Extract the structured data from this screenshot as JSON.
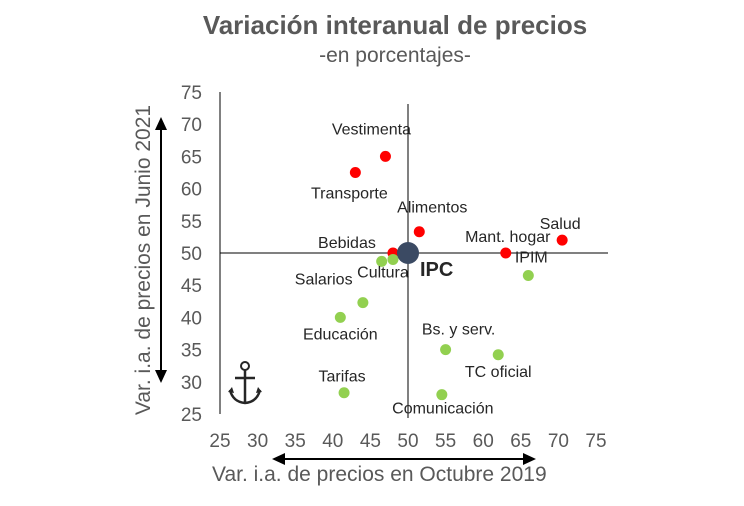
{
  "chart_data": {
    "type": "scatter",
    "title": "Variación interanual de precios",
    "subtitle": "-en porcentajes-",
    "xlabel": "Var. i.a. de precios en Octubre 2019",
    "ylabel": "Var. i.a. de precios en Junio 2021",
    "xlim": [
      25,
      75
    ],
    "ylim": [
      25,
      75
    ],
    "x_ticks": [
      25,
      30,
      35,
      40,
      45,
      50,
      55,
      60,
      65,
      70,
      75
    ],
    "y_ticks": [
      25,
      30,
      35,
      40,
      45,
      50,
      55,
      60,
      65,
      70,
      75
    ],
    "reference_lines": {
      "x": 50,
      "y": 50
    },
    "colors": {
      "red": "#ff0000",
      "green": "#92d050",
      "ipc": "#3b4a63",
      "axis": "#000000",
      "text": "#595959"
    },
    "points": [
      {
        "label": "Vestimenta",
        "x": 47.0,
        "y": 65.0,
        "color": "red"
      },
      {
        "label": "Transporte",
        "x": 43.0,
        "y": 62.5,
        "color": "red"
      },
      {
        "label": "Alimentos",
        "x": 51.5,
        "y": 53.3,
        "color": "red"
      },
      {
        "label": "Salud",
        "x": 70.5,
        "y": 52.0,
        "color": "red"
      },
      {
        "label": "Mant. hogar",
        "x": 63.0,
        "y": 50.0,
        "color": "red"
      },
      {
        "label": "Bebidas",
        "x": 48.0,
        "y": 50.0,
        "color": "red"
      },
      {
        "label": "Cultura",
        "x": 48.0,
        "y": 49.0,
        "color": "green"
      },
      {
        "label": "Salarios",
        "x": 46.5,
        "y": 48.7,
        "color": "green"
      },
      {
        "label": "IPIM",
        "x": 66.0,
        "y": 46.5,
        "color": "green"
      },
      {
        "label": "",
        "x": 44.0,
        "y": 42.3,
        "color": "green"
      },
      {
        "label": "Educación",
        "x": 41.0,
        "y": 40.0,
        "color": "green"
      },
      {
        "label": "Bs. y serv.",
        "x": 55.0,
        "y": 35.0,
        "color": "green"
      },
      {
        "label": "TC oficial",
        "x": 62.0,
        "y": 34.2,
        "color": "green"
      },
      {
        "label": "Tarifas",
        "x": 41.5,
        "y": 28.3,
        "color": "green"
      },
      {
        "label": "Comunicación",
        "x": 54.5,
        "y": 28.0,
        "color": "green"
      },
      {
        "label": "IPC",
        "x": 50.0,
        "y": 50.0,
        "color": "ipc"
      }
    ],
    "icon": "anchor-icon"
  }
}
